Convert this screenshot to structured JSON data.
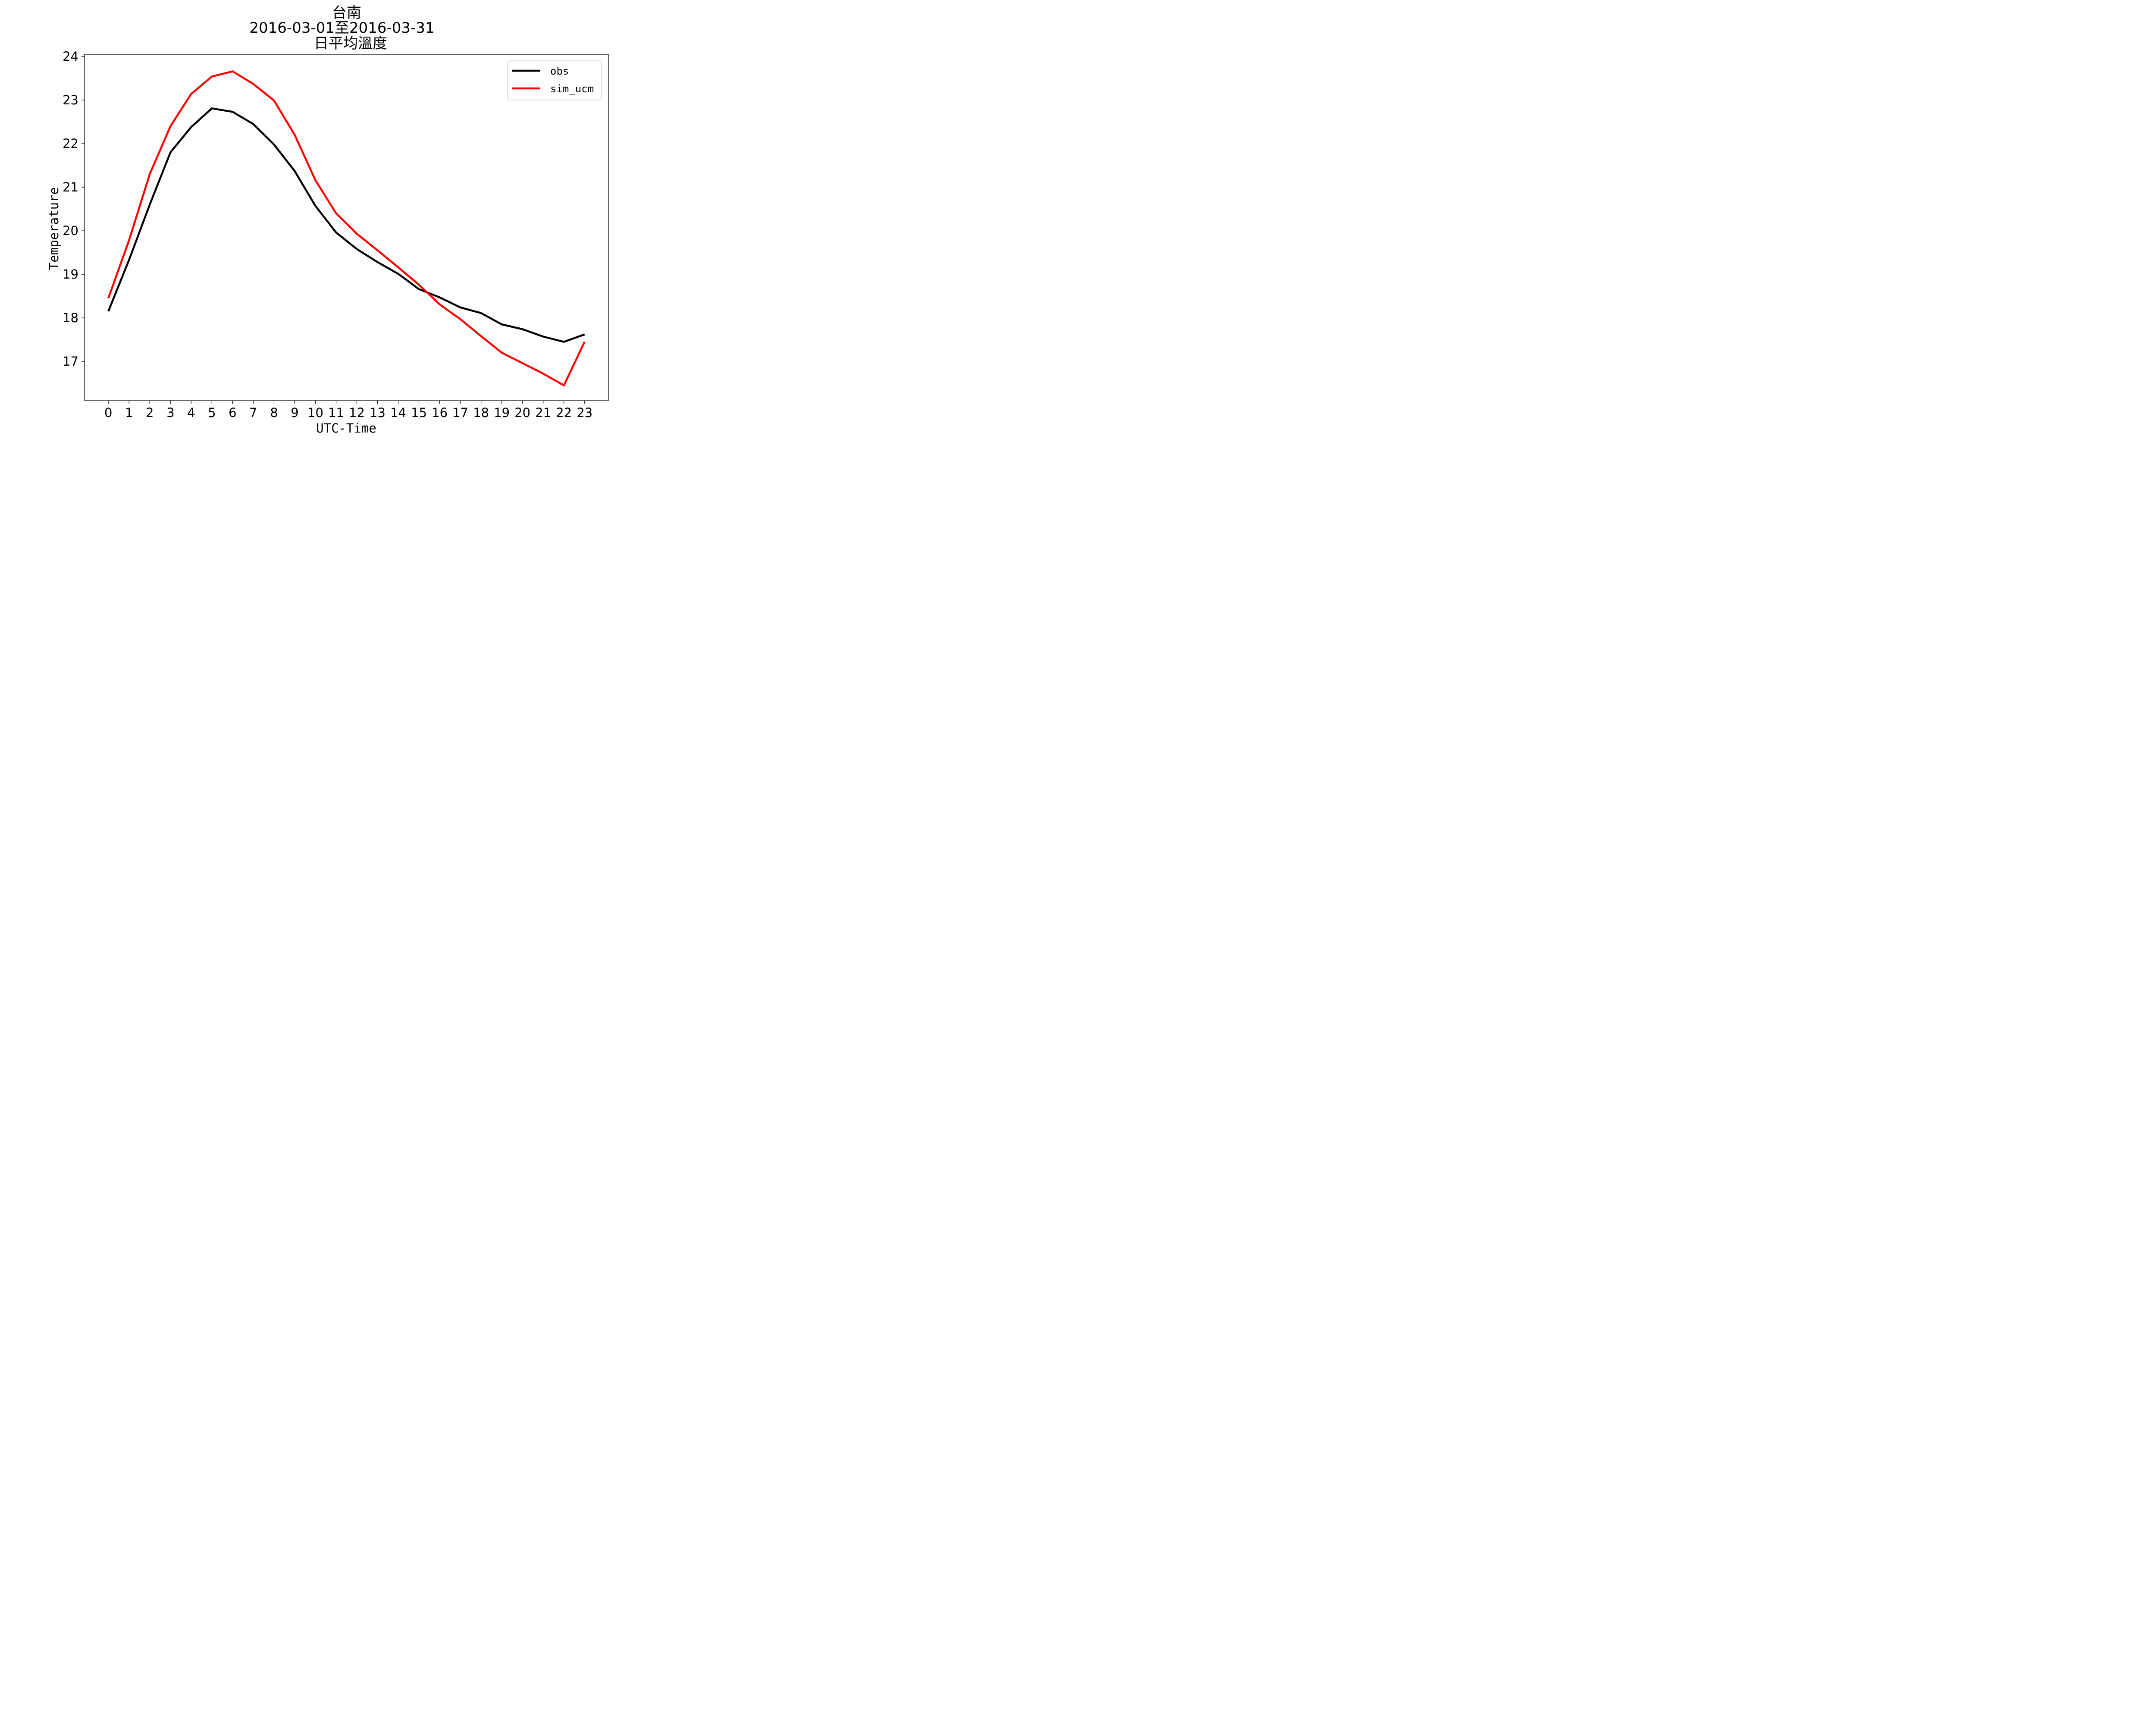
{
  "chart_data": {
    "type": "line",
    "title": [
      "台南",
      "2016-03-01至2016-03-31",
      "日平均溫度"
    ],
    "xlabel": "UTC-Time",
    "ylabel": "Temperature",
    "x": [
      0,
      1,
      2,
      3,
      4,
      5,
      6,
      7,
      8,
      9,
      10,
      11,
      12,
      13,
      14,
      15,
      16,
      17,
      18,
      19,
      20,
      21,
      22,
      23
    ],
    "xticks": [
      "0",
      "1",
      "2",
      "3",
      "4",
      "5",
      "6",
      "7",
      "8",
      "9",
      "10",
      "11",
      "12",
      "13",
      "14",
      "15",
      "16",
      "17",
      "18",
      "19",
      "20",
      "21",
      "22",
      "23"
    ],
    "yticks": [
      "17",
      "18",
      "19",
      "20",
      "21",
      "22",
      "23",
      "24"
    ],
    "ylim": [
      16.1,
      24.05
    ],
    "xlim": [
      -1.15,
      24.15
    ],
    "grid": false,
    "legend_position": "top-right",
    "series": [
      {
        "name": "obs",
        "color": "#000000",
        "values": [
          18.15,
          19.33,
          20.6,
          21.8,
          22.38,
          22.81,
          22.73,
          22.45,
          21.98,
          21.37,
          20.57,
          19.96,
          19.58,
          19.28,
          19.01,
          18.66,
          18.47,
          18.24,
          18.11,
          17.85,
          17.74,
          17.57,
          17.45,
          17.62
        ]
      },
      {
        "name": "sim_ucm",
        "color": "#ff0000",
        "values": [
          18.45,
          19.78,
          21.3,
          22.4,
          23.14,
          23.54,
          23.66,
          23.37,
          22.99,
          22.2,
          21.16,
          20.4,
          19.93,
          19.55,
          19.16,
          18.76,
          18.31,
          17.97,
          17.58,
          17.2,
          16.96,
          16.72,
          16.45,
          17.45
        ]
      }
    ]
  }
}
